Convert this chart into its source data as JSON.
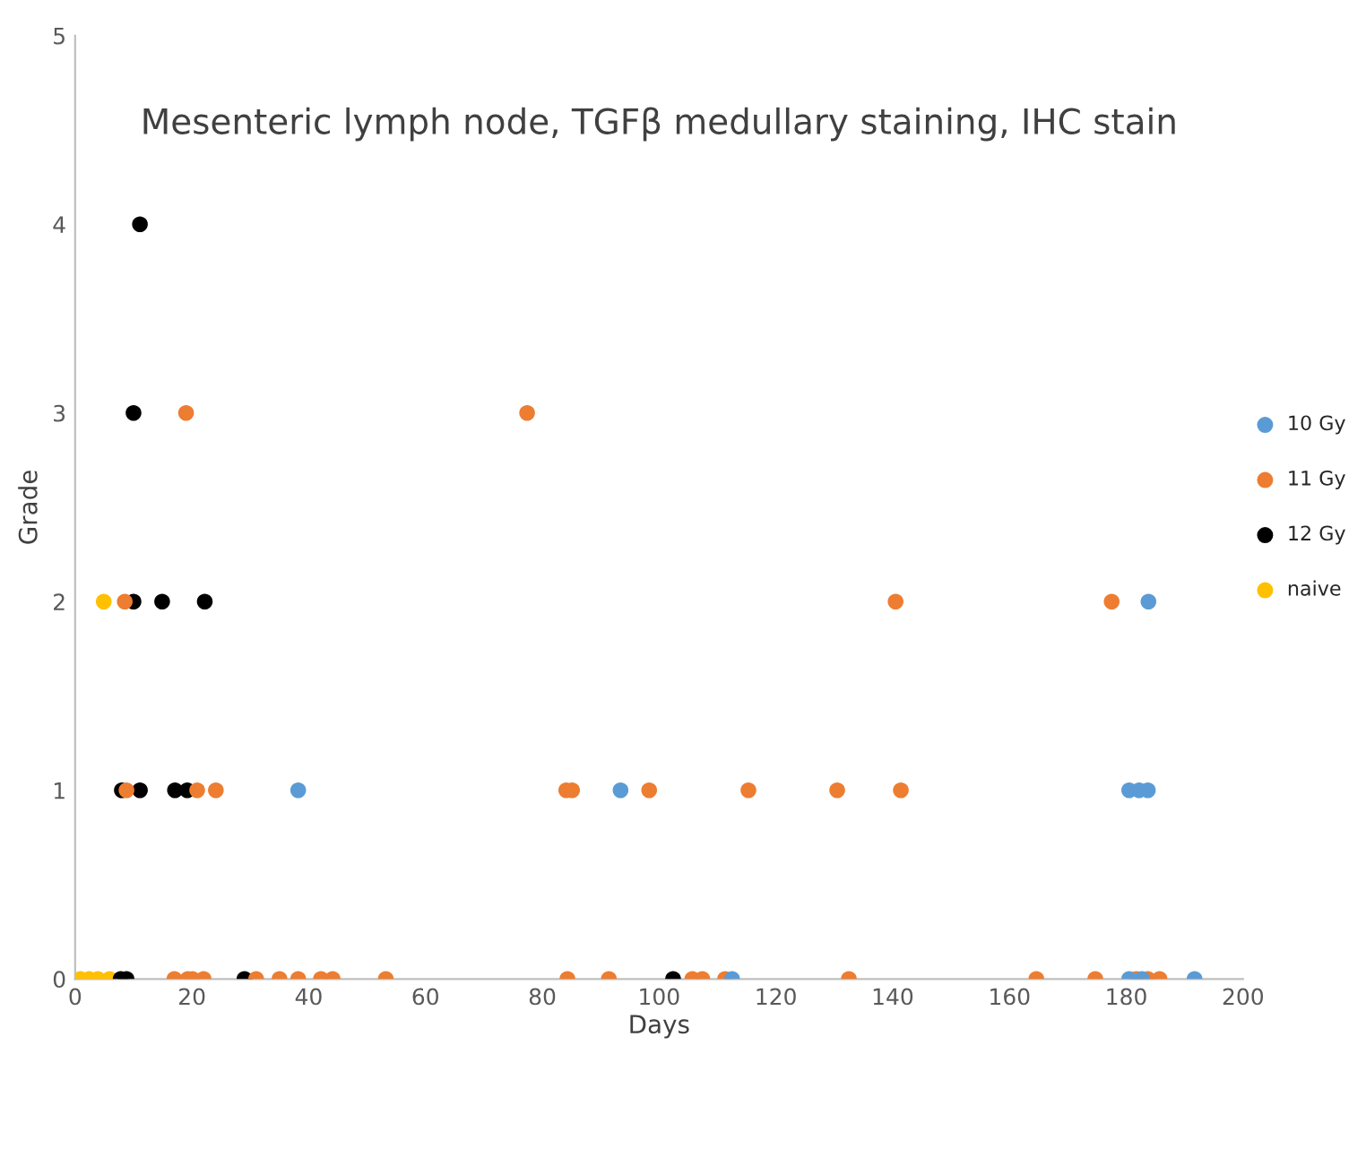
{
  "chart_data": {
    "type": "scatter",
    "title": "Mesenteric lymph node, TGFβ medullary staining, IHC stain",
    "xlabel": "Days",
    "ylabel": "Grade",
    "xlim": [
      0,
      200
    ],
    "xticks": [
      0,
      20,
      40,
      60,
      80,
      100,
      120,
      140,
      160,
      180,
      200
    ],
    "ylim": [
      0,
      5
    ],
    "yticks": [
      0,
      1,
      2,
      3,
      4,
      5
    ],
    "grid": false,
    "legend": "right",
    "marker": "circle",
    "series": [
      {
        "name": "10 Gy",
        "color": "#5b9bd5",
        "x": [
          38.2,
          93.4,
          180.5,
          182.2,
          183.7,
          183.8,
          112.5,
          180.5,
          182.7,
          191.7
        ],
        "values": [
          1,
          1,
          1,
          1,
          1,
          2,
          0,
          0,
          0,
          0
        ]
      },
      {
        "name": "11 Gy",
        "color": "#ed7d31",
        "x": [
          19.0,
          77.4,
          8.5,
          140.5,
          177.5,
          8.8,
          20.9,
          24.1,
          84.1,
          85.1,
          98.3,
          115.3,
          130.5,
          141.4,
          17.0,
          19.3,
          20.1,
          22.0,
          31.0,
          35.0,
          38.2,
          42.1,
          44.1,
          53.2,
          84.3,
          91.4,
          105.7,
          107.4,
          111.3,
          132.5,
          164.6,
          174.7,
          181.7,
          183.7,
          185.7
        ],
        "values": [
          3,
          3,
          2,
          2,
          2,
          1,
          1,
          1,
          1,
          1,
          1,
          1,
          1,
          1,
          0,
          0,
          0,
          0,
          0,
          0,
          0,
          0,
          0,
          0,
          0,
          0,
          0,
          0,
          0,
          0,
          0,
          0,
          0,
          0,
          0
        ]
      },
      {
        "name": "12 Gy",
        "color": "#000000",
        "x": [
          11.1,
          10.0,
          10.0,
          14.9,
          22.2,
          8.0,
          11.1,
          17.1,
          19.2,
          7.8,
          8.8,
          29.0,
          102.4
        ],
        "values": [
          4,
          3,
          2,
          2,
          2,
          1,
          1,
          1,
          1,
          0,
          0,
          0,
          0
        ]
      },
      {
        "name": "naive",
        "color": "#ffc000",
        "x": [
          4.9,
          0.9,
          2.4,
          3.9,
          5.9
        ],
        "values": [
          2,
          0,
          0,
          0,
          0
        ]
      }
    ]
  }
}
